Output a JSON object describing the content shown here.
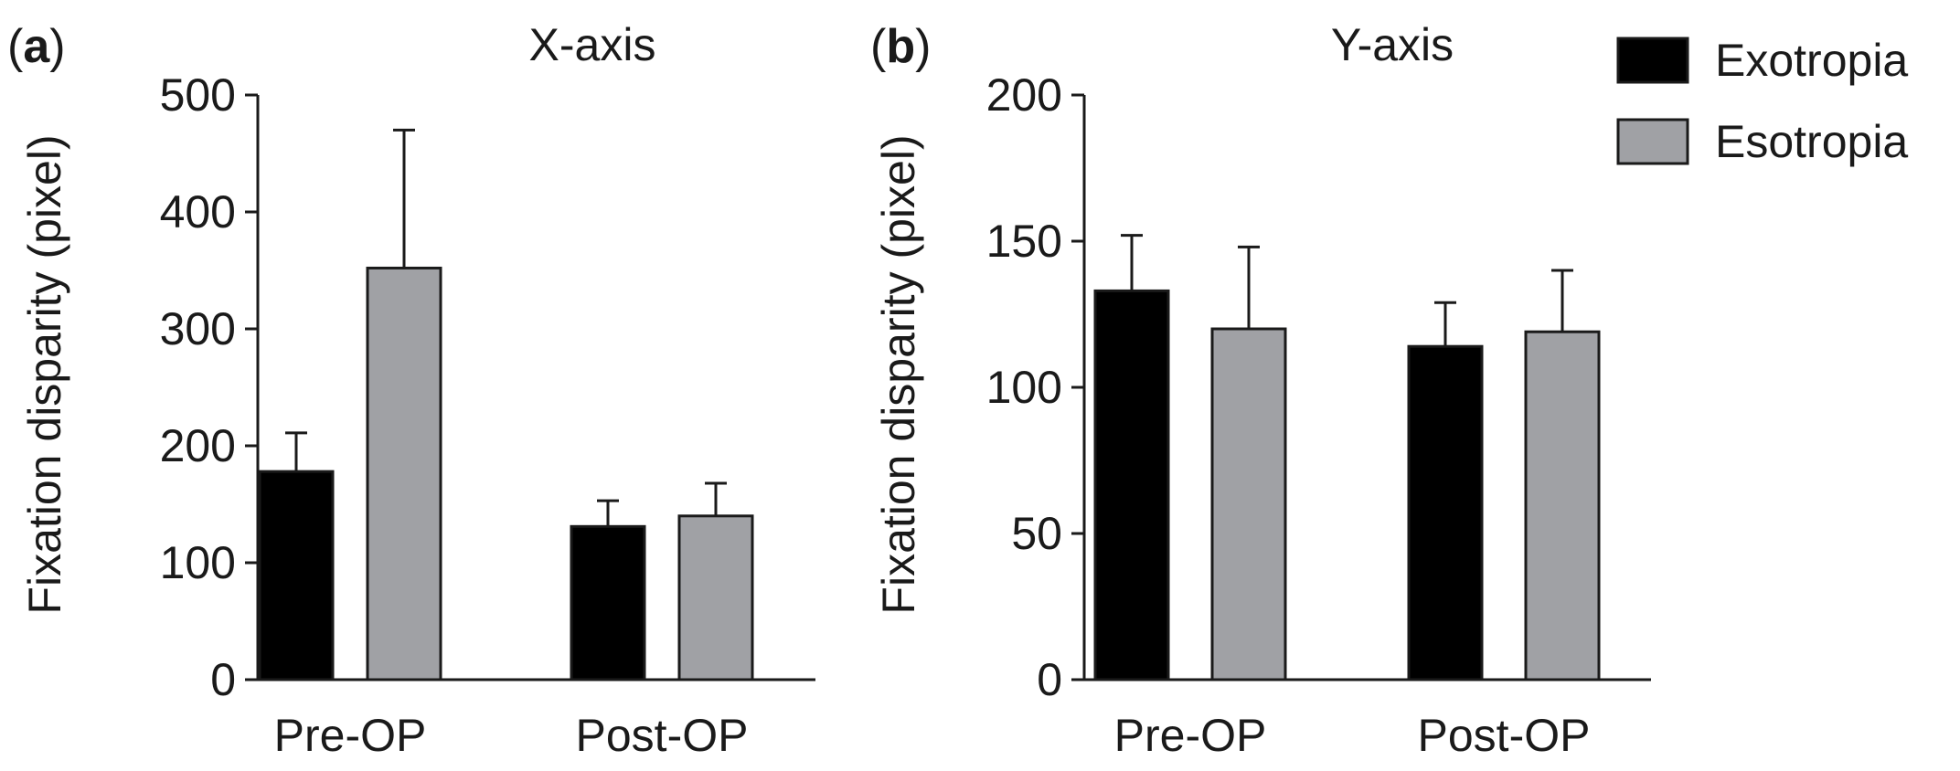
{
  "chart_data": [
    {
      "panel_label": "a",
      "type": "bar",
      "title": "X-axis",
      "ylabel": "Fixation disparity (pixel)",
      "xlabel": "",
      "ylim": [
        0,
        500
      ],
      "yticks": [
        0,
        100,
        200,
        300,
        400,
        500
      ],
      "categories": [
        "Pre-OP",
        "Post-OP"
      ],
      "series": [
        {
          "name": "Exotropia",
          "values": [
            178,
            131
          ],
          "errors": [
            33,
            22
          ]
        },
        {
          "name": "Esotropia",
          "values": [
            352,
            140
          ],
          "errors": [
            118,
            28
          ]
        }
      ],
      "grid": false
    },
    {
      "panel_label": "b",
      "type": "bar",
      "title": "Y-axis",
      "ylabel": "Fixation disparity (pixel)",
      "xlabel": "",
      "ylim": [
        0,
        200
      ],
      "yticks": [
        0,
        50,
        100,
        150,
        200
      ],
      "categories": [
        "Pre-OP",
        "Post-OP"
      ],
      "series": [
        {
          "name": "Exotropia",
          "values": [
            133,
            114
          ],
          "errors": [
            19,
            15
          ]
        },
        {
          "name": "Esotropia",
          "values": [
            120,
            119
          ],
          "errors": [
            28,
            21
          ]
        }
      ],
      "grid": false
    }
  ],
  "legend": {
    "position": "top-right",
    "entries": [
      {
        "name": "Exotropia",
        "color": "#000000"
      },
      {
        "name": "Esotropia",
        "color": "#a0a1a5"
      }
    ]
  },
  "colors": {
    "exotropia": "#000000",
    "esotropia": "#a0a1a5",
    "axis": "#1a1a1a"
  }
}
